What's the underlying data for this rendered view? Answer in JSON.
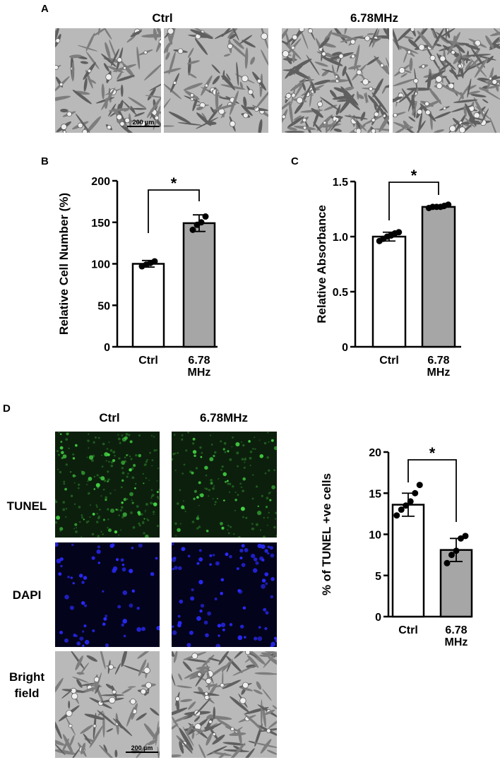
{
  "panel_a": {
    "letter": "A",
    "ctrl_title": "Ctrl",
    "treat_title": "6.78MHz",
    "scale_bar": "200 µm"
  },
  "panel_b": {
    "letter": "B"
  },
  "panel_c": {
    "letter": "C"
  },
  "panel_d": {
    "letter": "D",
    "ctrl_title": "Ctrl",
    "treat_title": "6.78MHz",
    "row_tunel": "TUNEL",
    "row_dapi": "DAPI",
    "row_bf_line1": "Bright",
    "row_bf_line2": "field",
    "scale_bar": "200 µm"
  },
  "colors": {
    "ctrl_bar": "#ffffff",
    "treat_bar": "#a6a6a6",
    "tunel_bg": "#0c1f0c",
    "tunel_cell": "#43d243",
    "dapi_bg": "#03031c",
    "dapi_cell": "#2b2bff",
    "phase_bg": "#b9b9b9"
  },
  "chart_data": [
    {
      "panel": "B",
      "type": "bar",
      "categories": [
        [
          "Ctrl"
        ],
        [
          "6.78",
          "MHz"
        ]
      ],
      "values": [
        100,
        149
      ],
      "errors": [
        4,
        10
      ],
      "points": [
        [
          97,
          99,
          101,
          103
        ],
        [
          141,
          147,
          150,
          157
        ]
      ],
      "ylabel": "Relative Cell Number (%)",
      "ylim": [
        0,
        200
      ],
      "yticks": [
        0,
        50,
        100,
        150,
        200
      ],
      "significance": "*"
    },
    {
      "panel": "C",
      "type": "bar",
      "categories": [
        [
          "Ctrl"
        ],
        [
          "6.78",
          "MHz"
        ]
      ],
      "values": [
        1.0,
        1.27
      ],
      "errors": [
        0.04,
        0.015
      ],
      "points": [
        [
          0.96,
          0.98,
          1.0,
          1.01,
          1.03,
          1.04
        ],
        [
          1.26,
          1.27,
          1.27,
          1.27,
          1.28,
          1.29
        ]
      ],
      "ylabel": "Relative Absorbance",
      "ylim": [
        0,
        1.5
      ],
      "yticks": [
        0,
        0.5,
        1.0,
        1.5
      ],
      "ytick_labels": [
        "0",
        "0.5",
        "1.0",
        "1.5"
      ],
      "significance": "*"
    },
    {
      "panel": "D",
      "type": "bar",
      "categories": [
        [
          "Ctrl"
        ],
        [
          "6.78",
          "MHz"
        ]
      ],
      "values": [
        13.6,
        8.1
      ],
      "errors": [
        1.4,
        1.4
      ],
      "points": [
        [
          12.3,
          13.0,
          13.5,
          14.0,
          15.0,
          16.0
        ],
        [
          6.5,
          7.5,
          8.0,
          9.5,
          9.8
        ]
      ],
      "ylabel": "% of TUNEL +ve cells",
      "ylim": [
        0,
        20
      ],
      "yticks": [
        0,
        5,
        10,
        15,
        20
      ],
      "significance": "*"
    }
  ]
}
